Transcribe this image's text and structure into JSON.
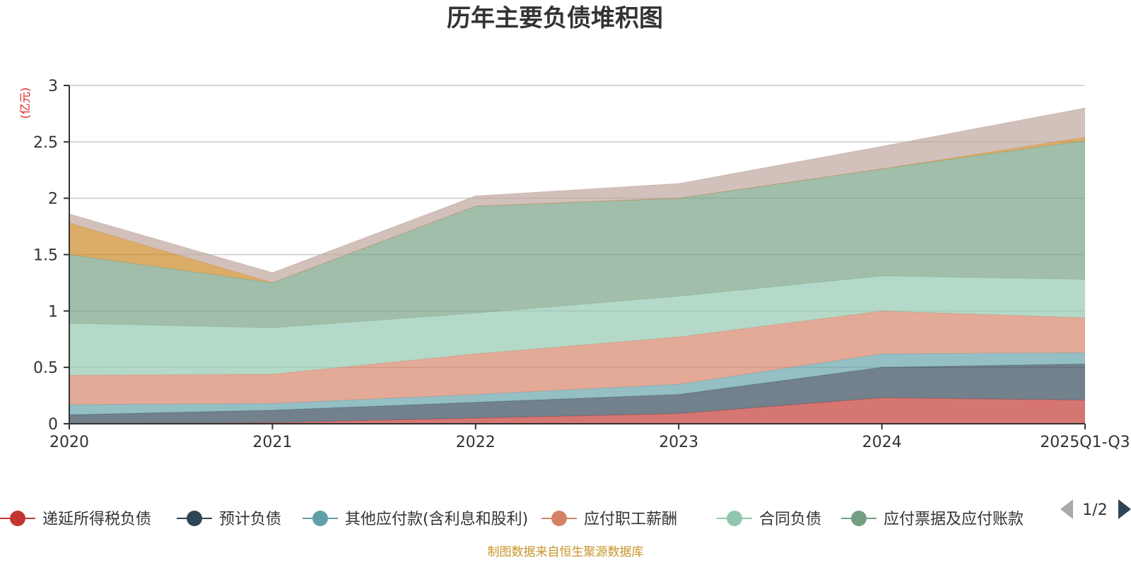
{
  "chart_data": {
    "type": "area",
    "stacked": true,
    "title": "历年主要负债堆积图",
    "ylabel": "(亿元)",
    "ylim": [
      0,
      3
    ],
    "yticks": [
      "0",
      "0.5",
      "1",
      "1.5",
      "2",
      "2.5",
      "3"
    ],
    "ytick_values": [
      0,
      0.5,
      1,
      1.5,
      2,
      2.5,
      3
    ],
    "categories": [
      "2020",
      "2021",
      "2022",
      "2023",
      "2024",
      "2025Q1-Q3"
    ],
    "grid": true,
    "legend_position": "bottom",
    "series": [
      {
        "name": "递延所得税负债",
        "color": "#c23531",
        "values": [
          0.0,
          0.01,
          0.05,
          0.09,
          0.23,
          0.21
        ]
      },
      {
        "name": "预计负债",
        "color": "#2f4554",
        "values": [
          0.08,
          0.11,
          0.14,
          0.17,
          0.27,
          0.32
        ]
      },
      {
        "name": "其他应付款(含利息和股利)",
        "color": "#61a0a8",
        "values": [
          0.09,
          0.06,
          0.07,
          0.09,
          0.12,
          0.1
        ]
      },
      {
        "name": "应付职工薪酬",
        "color": "#d48265",
        "values": [
          0.26,
          0.26,
          0.36,
          0.42,
          0.38,
          0.31
        ]
      },
      {
        "name": "合同负债",
        "color": "#91c7ae",
        "values": [
          0.46,
          0.41,
          0.36,
          0.36,
          0.31,
          0.34
        ]
      },
      {
        "name": "应付票据及应付账款",
        "color": "#749f83",
        "values": [
          0.61,
          0.4,
          0.95,
          0.87,
          0.95,
          1.23
        ]
      },
      {
        "color": "#ca8622",
        "values": [
          0.28,
          0.0,
          0.0,
          0.0,
          0.0,
          0.03
        ]
      },
      {
        "color": "#bda29a",
        "values": [
          0.08,
          0.09,
          0.09,
          0.13,
          0.2,
          0.26
        ]
      }
    ]
  },
  "legend": {
    "page_label": "1/2"
  },
  "footer": {
    "source": "制图数据来自恒生聚源数据库"
  }
}
